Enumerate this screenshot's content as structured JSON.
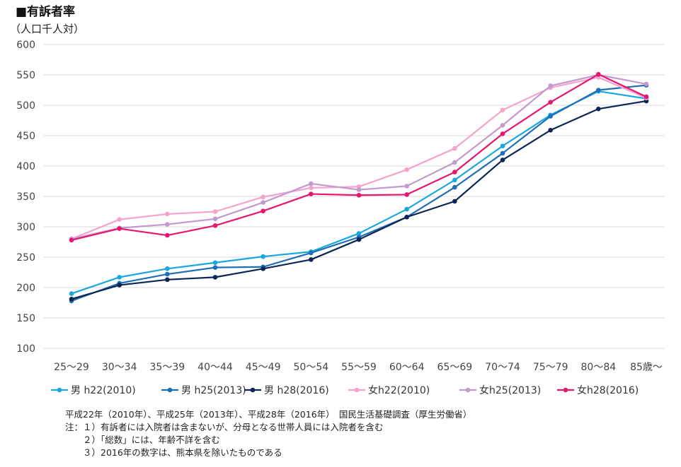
{
  "chart_data": {
    "type": "line",
    "title": "■有訴者率",
    "unit_label": "（人口千人対）",
    "xlabel": "",
    "ylabel": "",
    "ylim": [
      100,
      600
    ],
    "yticks": [
      100,
      150,
      200,
      250,
      300,
      350,
      400,
      450,
      500,
      550,
      600
    ],
    "grid": true,
    "legend": "bottom",
    "categories": [
      "25〜29",
      "30〜34",
      "35〜39",
      "40〜44",
      "45〜49",
      "50〜54",
      "55〜59",
      "60〜64",
      "65〜69",
      "70〜74",
      "75〜79",
      "80〜84",
      "85歳〜"
    ],
    "series": [
      {
        "name": "男 h22(2010)",
        "color": "#1aa7e0",
        "values": [
          190,
          217,
          231,
          241,
          251,
          259,
          289,
          329,
          377,
          433,
          484,
          523,
          511
        ]
      },
      {
        "name": "男 h25(2013)",
        "color": "#1f6fb5",
        "values": [
          178,
          207,
          222,
          233,
          234,
          257,
          283,
          316,
          365,
          421,
          482,
          525,
          533
        ]
      },
      {
        "name": "男 h28(2016)",
        "color": "#0d2557",
        "values": [
          181,
          204,
          213,
          217,
          231,
          246,
          279,
          316,
          342,
          410,
          459,
          494,
          507
        ]
      },
      {
        "name": "女h22(2010)",
        "color": "#f5a3cd",
        "values": [
          280,
          312,
          321,
          325,
          349,
          364,
          366,
          394,
          429,
          492,
          529,
          546,
          512
        ]
      },
      {
        "name": "女h25(2013)",
        "color": "#c39ad0",
        "values": [
          280,
          298,
          304,
          313,
          340,
          371,
          361,
          367,
          406,
          467,
          532,
          550,
          535
        ]
      },
      {
        "name": "女h28(2016)",
        "color": "#e5176f",
        "values": [
          278,
          297,
          286,
          302,
          326,
          354,
          352,
          353,
          390,
          453,
          505,
          551,
          514
        ]
      }
    ]
  },
  "notes": [
    "平成22年（2010年）、平成25年（2013年）、平成28年（2016年）　国民生活基礎調査（厚生労働省）",
    "注：１）有訴者には入院者は含まないが、分母となる世帯人員には入院者を含む",
    "　　２）「総数」には、年齢不詳を含む",
    "　　３）2016年の数字は、熊本県を除いたものである"
  ]
}
